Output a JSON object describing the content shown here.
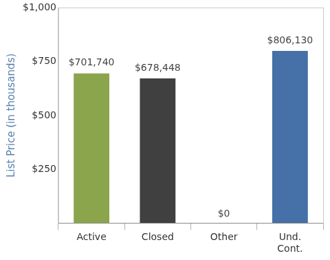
{
  "chart_data": {
    "type": "bar",
    "y_label": "List Price (in thousands)",
    "categories": [
      "Active",
      "Closed",
      "Other",
      "Und. Cont."
    ],
    "values": [
      701.74,
      678.448,
      0,
      806.13
    ],
    "value_labels": [
      "$701,740",
      "$678,448",
      "$0",
      "$806,130"
    ],
    "colors": [
      "#8ba54c",
      "#404040",
      "#9a9a9a",
      "#4570a8"
    ],
    "ylim": [
      0,
      1000
    ],
    "yticks": [
      {
        "value": 250,
        "label": "$250"
      },
      {
        "value": 500,
        "label": "$500"
      },
      {
        "value": 750,
        "label": "$750"
      },
      {
        "value": 1000,
        "label": "$1,000"
      }
    ],
    "grid": false,
    "data_labels": true
  }
}
